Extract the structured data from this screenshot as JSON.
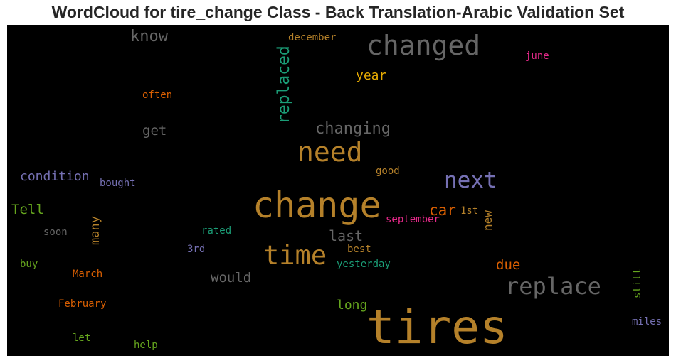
{
  "chart_data": {
    "type": "wordcloud",
    "title": "WordCloud for tire_change Class - Back Translation-Arabic Validation Set",
    "background": "#000000",
    "words": [
      {
        "text": "tires",
        "color": "#b5812a"
      },
      {
        "text": "change",
        "color": "#b5812a"
      },
      {
        "text": "changed",
        "color": "#666666"
      },
      {
        "text": "need",
        "color": "#b5812a"
      },
      {
        "text": "time",
        "color": "#b5812a"
      },
      {
        "text": "replace",
        "color": "#666666"
      },
      {
        "text": "next",
        "color": "#7570b3"
      },
      {
        "text": "replaced",
        "color": "#1b9e77"
      },
      {
        "text": "changing",
        "color": "#666666"
      },
      {
        "text": "know",
        "color": "#666666"
      },
      {
        "text": "car",
        "color": "#d95f02"
      },
      {
        "text": "condition",
        "color": "#7570b3"
      },
      {
        "text": "last",
        "color": "#666666"
      },
      {
        "text": "Tell",
        "color": "#66a61e"
      },
      {
        "text": "year",
        "color": "#e6ab02"
      },
      {
        "text": "get",
        "color": "#666666"
      },
      {
        "text": "due",
        "color": "#d95f02"
      },
      {
        "text": "would",
        "color": "#666666"
      },
      {
        "text": "long",
        "color": "#66a61e"
      },
      {
        "text": "many",
        "color": "#b5812a"
      },
      {
        "text": "new",
        "color": "#b5812a"
      },
      {
        "text": "december",
        "color": "#b5812a"
      },
      {
        "text": "june",
        "color": "#e7298a"
      },
      {
        "text": "often",
        "color": "#d95f02"
      },
      {
        "text": "good",
        "color": "#b5812a"
      },
      {
        "text": "bought",
        "color": "#7570b3"
      },
      {
        "text": "september",
        "color": "#e7298a"
      },
      {
        "text": "1st",
        "color": "#b5812a"
      },
      {
        "text": "soon",
        "color": "#666666"
      },
      {
        "text": "rated",
        "color": "#1b9e77"
      },
      {
        "text": "3rd",
        "color": "#7570b3"
      },
      {
        "text": "best",
        "color": "#b5812a"
      },
      {
        "text": "buy",
        "color": "#66a61e"
      },
      {
        "text": "March",
        "color": "#d95f02"
      },
      {
        "text": "yesterday",
        "color": "#1b9e77"
      },
      {
        "text": "still",
        "color": "#66a61e"
      },
      {
        "text": "February",
        "color": "#d95f02"
      },
      {
        "text": "miles",
        "color": "#7570b3"
      },
      {
        "text": "let",
        "color": "#66a61e"
      },
      {
        "text": "help",
        "color": "#66a61e"
      }
    ]
  }
}
